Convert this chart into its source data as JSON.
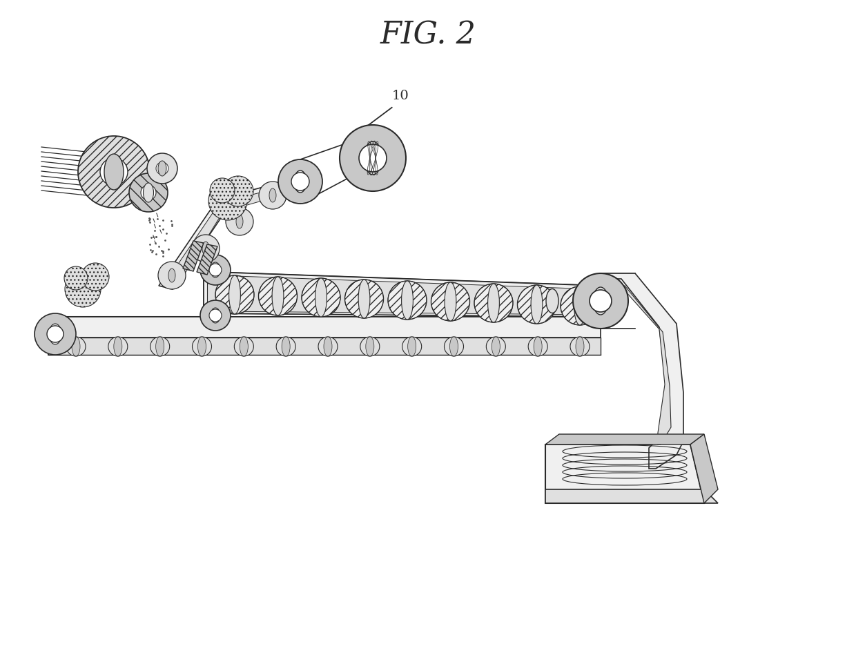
{
  "title": "FIG. 2",
  "bg_color": "#ffffff",
  "line_color": "#2a2a2a",
  "fill_white": "#ffffff",
  "fill_light": "#f0f0f0",
  "fill_mid": "#e0e0e0",
  "fill_dark": "#c8c8c8",
  "fill_vdark": "#b0b0b0"
}
